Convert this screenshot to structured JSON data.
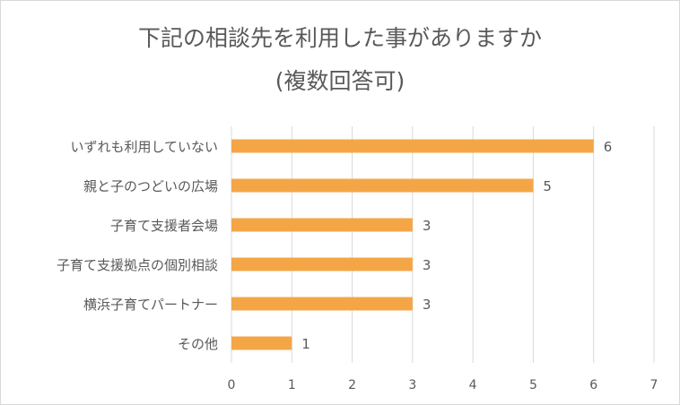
{
  "chart_data": {
    "type": "bar",
    "orientation": "horizontal",
    "title": "下記の相談先を利用した事がありますか",
    "subtitle": "(複数回答可)",
    "categories": [
      "いずれも利用していない",
      "親と子のつどいの広場",
      "子育て支援者会場",
      "子育て支援拠点の個別相談",
      "横浜子育てパートナー",
      "その他"
    ],
    "values": [
      6,
      5,
      3,
      3,
      3,
      1
    ],
    "xlim": [
      0,
      7
    ],
    "xticks": [
      0,
      1,
      2,
      3,
      4,
      5,
      6,
      7
    ],
    "grid": true,
    "legend": "none",
    "bar_color": "#F4A647",
    "xlabel": "",
    "ylabel": ""
  }
}
